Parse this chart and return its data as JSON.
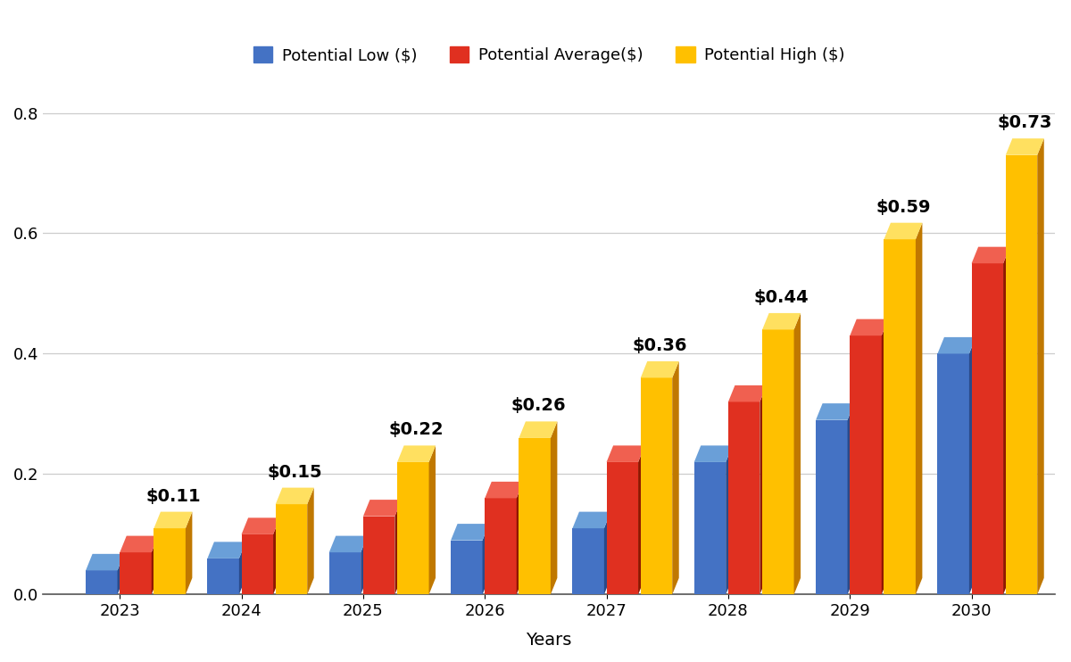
{
  "years": [
    2023,
    2024,
    2025,
    2026,
    2027,
    2028,
    2029,
    2030
  ],
  "potential_low": [
    0.04,
    0.06,
    0.07,
    0.09,
    0.11,
    0.22,
    0.29,
    0.4
  ],
  "potential_avg": [
    0.07,
    0.1,
    0.13,
    0.16,
    0.22,
    0.32,
    0.43,
    0.55
  ],
  "potential_high": [
    0.11,
    0.15,
    0.22,
    0.26,
    0.36,
    0.44,
    0.59,
    0.73
  ],
  "high_labels": [
    "$0.11",
    "$0.15",
    "$0.22",
    "$0.26",
    "$0.36",
    "$0.44",
    "$0.59",
    "$0.73"
  ],
  "color_low": "#4472C4",
  "color_low_dark": "#2a4a8a",
  "color_low_top": "#6a9fd8",
  "color_avg": "#E03020",
  "color_avg_dark": "#901800",
  "color_avg_top": "#f06050",
  "color_high": "#FFC000",
  "color_high_dark": "#c07800",
  "color_high_top": "#ffe060",
  "legend_labels": [
    "Potential Low ($)",
    "Potential Average($)",
    "Potential High ($)"
  ],
  "xlabel": "Years",
  "ylim": [
    0,
    0.85
  ],
  "yticks": [
    0.0,
    0.2,
    0.4,
    0.6,
    0.8
  ],
  "background_color": "#FFFFFF",
  "grid_color": "#CCCCCC",
  "label_fontsize": 14,
  "tick_fontsize": 13,
  "legend_fontsize": 13,
  "annotation_fontsize": 14
}
